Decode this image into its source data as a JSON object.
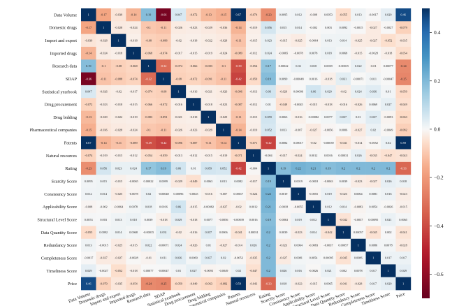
{
  "chart_data": {
    "type": "heatmap",
    "title": "",
    "xlabel": "",
    "ylabel": "",
    "labels": [
      "Data Volume",
      "Domestic drugs",
      "Import and export",
      "Imported drugs",
      "Research data",
      "SDAP",
      "Statistical yearbook",
      "Drug procurement",
      "Drug bidding",
      "Pharmaceutical companies",
      "Patents",
      "Natural resources",
      "Rating",
      "Scarcity Score",
      "Consistency Score",
      "Applicability Score",
      "Structural Level Score",
      "Data Quantity Score",
      "Redundancy Score",
      "Completeness Score",
      "Timeliness Score",
      "Price"
    ],
    "values": [
      [
        "1",
        "-0.17",
        "-0.039",
        "-0.14",
        "0.19",
        "-0.66",
        "0.047",
        "-0.072",
        "-0.13",
        "-0.15",
        "0.67",
        "-0.074",
        "-0.23",
        "0.0095",
        "0.012",
        "-0.008",
        "0.0053",
        "-0.055",
        "0.013",
        "-0.0017",
        "0.029",
        "0.46"
      ],
      [
        "-0.17",
        "1",
        "-0.028",
        "-0.024",
        "-0.1",
        "-0.11",
        "-0.026",
        "-0.023",
        "-0.029",
        "-0.036",
        "-0.14",
        "-0.019",
        "0.056",
        "0.015",
        "0.014",
        "-0.002",
        "0.003",
        "0.0092",
        "-0.0015",
        "-0.027",
        "-0.0027",
        "-0.079"
      ],
      [
        "-0.039",
        "-0.028",
        "1",
        "-0.018",
        "-0.08",
        "-0.088",
        "-0.02",
        "-0.018",
        "-0.022",
        "-0.028",
        "-0.11",
        "-0.015",
        "0.023",
        "-0.015",
        "-0.025",
        "-0.0064",
        "0.013",
        "0.014",
        "-0.025",
        "-0.027",
        "-0.052",
        "-0.035"
      ],
      [
        "-0.14",
        "-0.024",
        "-0.018",
        "1",
        "-0.068",
        "-0.074",
        "-0.017",
        "-0.015",
        "-0.019",
        "-0.024",
        "-0.089",
        "-0.012",
        "0.024",
        "-0.0065",
        "-0.0078",
        "0.0078",
        "0.018",
        "0.0068",
        "-0.015",
        "-0.0028",
        "-0.018",
        "-0.054"
      ],
      [
        "0.19",
        "-0.1",
        "-0.08",
        "-0.068",
        "1",
        "-0.32",
        "-0.074",
        "-0.066",
        "-0.083",
        "-0.1",
        "-0.39",
        "-0.054",
        "0.17",
        "0.00022",
        "0.02",
        "0.018",
        "0.0039",
        "-0.00015",
        "0.022",
        "-0.01",
        "0.00077",
        "-0.24"
      ],
      [
        "-0.66",
        "-0.11",
        "-0.088",
        "-0.074",
        "-0.32",
        "1",
        "-0.08",
        "-0.072",
        "-0.091",
        "-0.11",
        "-0.42",
        "-0.059",
        "0.19",
        "0.0099",
        "-0.00048",
        "0.0016",
        "-0.018",
        "0.031",
        "-0.00071",
        "0.011",
        "-0.00047",
        "-0.25"
      ],
      [
        "0.047",
        "-0.026",
        "-0.02",
        "-0.017",
        "-0.074",
        "-0.08",
        "1",
        "-0.016",
        "-0.021",
        "-0.026",
        "-0.096",
        "-0.013",
        "0.06",
        "-0.029",
        "0.00096",
        "0.06",
        "0.029",
        "-0.02",
        "0.024",
        "0.036",
        "0.01",
        "-0.059"
      ],
      [
        "-0.072",
        "-0.023",
        "-0.018",
        "-0.015",
        "-0.066",
        "-0.072",
        "-0.016",
        "1",
        "-0.018",
        "-0.023",
        "-0.087",
        "-0.012",
        "0.01",
        "-0.049",
        "-0.0045",
        "-0.015",
        "-0.018",
        "-0.016",
        "-0.026",
        "0.0069",
        "0.027",
        "-0.049"
      ],
      [
        "-0.13",
        "-0.029",
        "-0.022",
        "-0.019",
        "-0.083",
        "-0.091",
        "-0.021",
        "-0.018",
        "1",
        "-0.029",
        "-0.11",
        "-0.015",
        "0.059",
        "0.0063",
        "-0.016",
        "-0.00082",
        "0.0077",
        "0.037",
        "0.01",
        "0.037",
        "-0.0093",
        "-0.063"
      ],
      [
        "-0.15",
        "-0.036",
        "-0.028",
        "-0.024",
        "-0.1",
        "-0.11",
        "-0.026",
        "-0.023",
        "-0.029",
        "1",
        "-0.14",
        "-0.019",
        "0.052",
        "0.013",
        "-0.007",
        "-0.027",
        "-0.0056",
        "0.0006",
        "-0.027",
        "0.02",
        "-0.0049",
        "-0.082"
      ],
      [
        "0.67",
        "-0.14",
        "-0.11",
        "-0.089",
        "-0.39",
        "-0.42",
        "-0.096",
        "-0.087",
        "-0.11",
        "-0.14",
        "1",
        "-0.071",
        "-0.42",
        "0.0082",
        "0.00017",
        "-0.02",
        "-0.00039",
        "-0.041",
        "-0.014",
        "-0.0052",
        "0.02",
        "0.59"
      ],
      [
        "-0.074",
        "-0.019",
        "-0.015",
        "-0.012",
        "-0.054",
        "-0.059",
        "-0.013",
        "-0.012",
        "-0.015",
        "-0.019",
        "-0.071",
        "1",
        "-0.004",
        "-0.017",
        "-0.024",
        "0.0012",
        "0.0016",
        "0.00031",
        "0.026",
        "-0.035",
        "-0.047",
        "-0.043"
      ],
      [
        "-0.23",
        "0.056",
        "0.023",
        "0.024",
        "0.17",
        "0.19",
        "0.06",
        "0.01",
        "0.059",
        "0.052",
        "-0.42",
        "-0.004",
        "1",
        "0.19",
        "0.22",
        "0.21",
        "0.19",
        "0.2",
        "0.2",
        "0.2",
        "0.2",
        "-0.33"
      ],
      [
        "0.0095",
        "0.015",
        "-0.015",
        "-0.0065",
        "0.00022",
        "0.0099",
        "-0.029",
        "-0.049",
        "0.0063",
        "0.013",
        "0.0082",
        "-0.017",
        "0.19",
        "1",
        "0.0019",
        "-0.0018",
        "-0.0063",
        "0.0039",
        "-0.023",
        "-0.027",
        "0.026",
        "0.018"
      ],
      [
        "0.012",
        "0.014",
        "-0.025",
        "-0.0078",
        "0.02",
        "-0.00048",
        "0.00096",
        "-0.0045",
        "-0.016",
        "-0.007",
        "0.00017",
        "-0.024",
        "0.22",
        "0.0019",
        "1",
        "-0.0055",
        "0.019",
        "-0.023",
        "0.0064",
        "0.0081",
        "0.016",
        "-0.023"
      ],
      [
        "-0.008",
        "-0.002",
        "-0.0064",
        "0.0078",
        "0.018",
        "0.0016",
        "0.06",
        "-0.015",
        "-0.00082",
        "-0.027",
        "-0.02",
        "0.0012",
        "0.21",
        "-0.0018",
        "-0.0055",
        "1",
        "0.012",
        "0.014",
        "-0.0083",
        "0.0054",
        "-0.0026",
        "-0.015"
      ],
      [
        "0.0053",
        "0.003",
        "0.013",
        "0.018",
        "0.0039",
        "-0.018",
        "0.029",
        "-0.018",
        "0.0077",
        "-0.0056",
        "-0.00039",
        "0.0016",
        "0.19",
        "-0.0063",
        "0.019",
        "0.012",
        "1",
        "-0.042",
        "-0.0037",
        "0.00095",
        "0.021",
        "0.0065"
      ],
      [
        "-0.055",
        "0.0092",
        "0.014",
        "0.0068",
        "-0.00015",
        "0.031",
        "-0.02",
        "-0.016",
        "0.037",
        "0.0006",
        "-0.041",
        "0.00031",
        "0.2",
        "0.0039",
        "-0.023",
        "0.014",
        "-0.042",
        "1",
        "0.00057",
        "-0.045",
        "0.002",
        "-0.041"
      ],
      [
        "0.013",
        "-0.0015",
        "-0.025",
        "-0.015",
        "0.022",
        "-0.00071",
        "0.024",
        "-0.026",
        "0.01",
        "-0.027",
        "-0.014",
        "0.026",
        "0.2",
        "-0.023",
        "0.0064",
        "-0.0083",
        "-0.0037",
        "0.00057",
        "1",
        "0.0086",
        "0.0078",
        "-0.028"
      ],
      [
        "-0.0017",
        "-0.027",
        "-0.027",
        "-0.0028",
        "-0.01",
        "0.011",
        "0.036",
        "0.0069",
        "0.037",
        "0.02",
        "-0.0052",
        "-0.035",
        "0.2",
        "-0.027",
        "0.0081",
        "0.0054",
        "0.00095",
        "-0.045",
        "0.0086",
        "1",
        "0.017",
        "0.017"
      ],
      [
        "0.029",
        "-0.0027",
        "-0.052",
        "-0.018",
        "0.00077",
        "-0.00047",
        "0.01",
        "0.027",
        "-0.0093",
        "-0.0049",
        "0.02",
        "-0.047",
        "0.2",
        "0.026",
        "0.016",
        "-0.0026",
        "0.021",
        "0.002",
        "0.0078",
        "0.017",
        "1",
        "0.029"
      ],
      [
        "0.46",
        "-0.079",
        "-0.035",
        "-0.054",
        "-0.24",
        "-0.25",
        "-0.059",
        "-0.049",
        "-0.063",
        "-0.082",
        "0.59",
        "-0.043",
        "-0.33",
        "0.018",
        "-0.023",
        "-0.015",
        "0.0065",
        "-0.041",
        "-0.028",
        "0.017",
        "0.029",
        "1"
      ]
    ],
    "colorbar": {
      "ticks": [
        "0.4",
        "0.2",
        "0.0",
        "−0.2",
        "−0.4",
        "−0.6"
      ]
    },
    "color_scale": {
      "low": "#67001f",
      "mid": "#f7f7f7",
      "high": "#053061"
    },
    "grid": false,
    "legend": "right colorbar"
  }
}
